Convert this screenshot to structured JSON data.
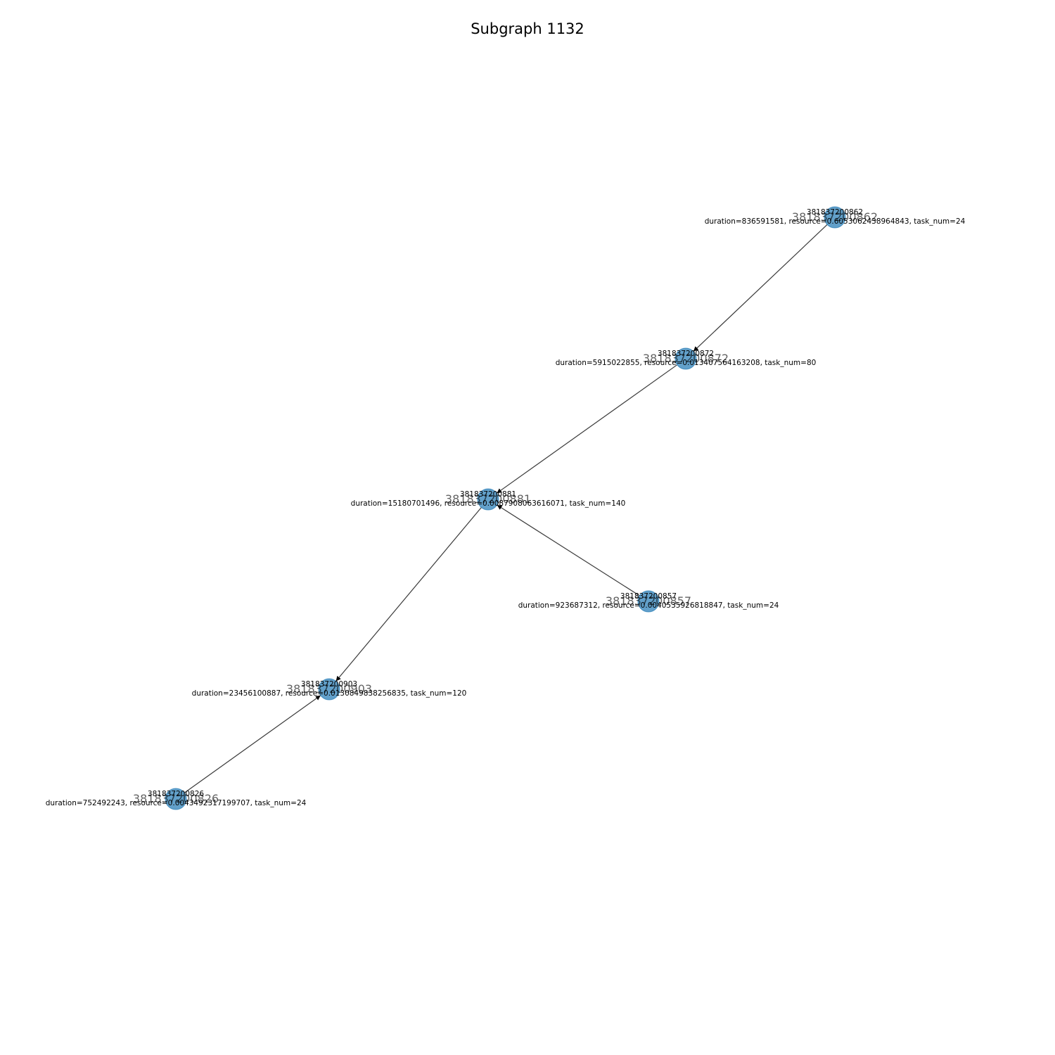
{
  "title": "Subgraph 1132",
  "colors": {
    "node": "#1f77b4",
    "edge": "#3a3a3a"
  },
  "nodes": [
    {
      "id": "381837200862",
      "attr": "duration=836591581, resource=0.6053062438964843, task_num=24"
    },
    {
      "id": "381837200872",
      "attr": "duration=5915022855, resource=0.013407564163208, task_num=80"
    },
    {
      "id": "381837200881",
      "attr": "duration=15180701496, resource=0.0087908063616071, task_num=140"
    },
    {
      "id": "381837200857",
      "attr": "duration=923687312, resource=0.0040535926818847, task_num=24"
    },
    {
      "id": "381837200903",
      "attr": "duration=23456100887, resource=0.0130849838256835, task_num=120"
    },
    {
      "id": "381837200826",
      "attr": "duration=752492243, resource=0.0043492317199707, task_num=24"
    }
  ],
  "edges": [
    {
      "from": "381837200862",
      "to": "381837200872"
    },
    {
      "from": "381837200872",
      "to": "381837200881"
    },
    {
      "from": "381837200857",
      "to": "381837200881"
    },
    {
      "from": "381837200881",
      "to": "381837200903"
    },
    {
      "from": "381837200826",
      "to": "381837200903"
    }
  ]
}
